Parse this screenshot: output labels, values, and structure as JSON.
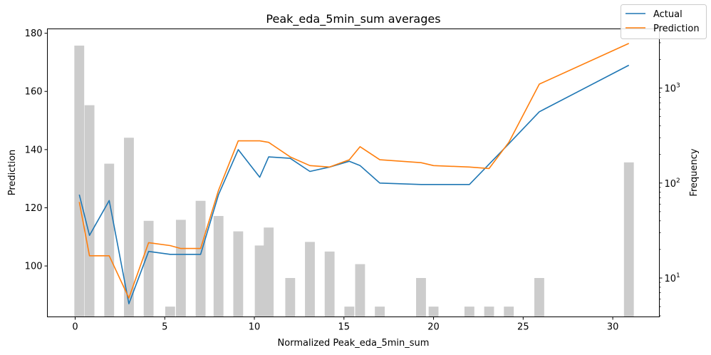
{
  "chart_data": {
    "type": "line",
    "title": "Peak_eda_5min_sum averages",
    "xlabel": "Normalized Peak_eda_5min_sum",
    "ylabel": "Prediction",
    "ylabel_right": "Frequency",
    "xlim": [
      -1.55,
      32.6
    ],
    "ylim": [
      82.5,
      181.5
    ],
    "y2_log": true,
    "y2lim": [
      3.9,
      4200
    ],
    "grid": false,
    "legend_position": "top-right",
    "x_ticks": [
      0,
      5,
      10,
      15,
      20,
      25,
      30
    ],
    "x_tick_labels": [
      "0",
      "5",
      "10",
      "15",
      "20",
      "25",
      "30"
    ],
    "y_ticks": [
      100,
      120,
      140,
      160,
      180
    ],
    "y_tick_labels": [
      "100",
      "120",
      "140",
      "160",
      "180"
    ],
    "y2_ticks": [
      10,
      100,
      1000
    ],
    "y2_tick_labels": [
      "10",
      "10",
      "10"
    ],
    "y2_tick_exponents": [
      "1",
      "2",
      "3"
    ],
    "series": [
      {
        "name": "Actual",
        "color": "#1f77b4",
        "x": [
          0.23,
          0.8,
          1.9,
          3.0,
          4.1,
          5.3,
          5.9,
          7.0,
          8.0,
          9.1,
          10.3,
          10.8,
          12.0,
          13.1,
          14.2,
          15.3,
          15.9,
          17.0,
          19.3,
          20.0,
          22.0,
          23.1,
          24.2,
          25.9,
          30.9
        ],
        "values": [
          124.5,
          110.5,
          122.5,
          87.0,
          105.0,
          104.0,
          104.0,
          104.0,
          124.5,
          140.0,
          130.5,
          137.5,
          137.0,
          132.5,
          134.0,
          136.0,
          134.5,
          128.5,
          128.0,
          128.0,
          128.0,
          135.0,
          142.0,
          153.0,
          169.0
        ]
      },
      {
        "name": "Prediction",
        "color": "#ff7f0e",
        "x": [
          0.23,
          0.8,
          1.9,
          3.0,
          4.1,
          5.3,
          5.9,
          7.0,
          8.0,
          9.1,
          10.3,
          10.8,
          12.0,
          13.1,
          14.2,
          15.3,
          15.9,
          17.0,
          19.3,
          20.0,
          22.0,
          23.1,
          24.2,
          25.9,
          30.9
        ],
        "values": [
          122.0,
          103.5,
          103.5,
          89.0,
          108.0,
          107.0,
          106.0,
          106.0,
          126.0,
          143.0,
          143.0,
          142.5,
          137.5,
          134.5,
          134.0,
          136.5,
          141.0,
          136.5,
          135.5,
          134.5,
          134.0,
          133.5,
          142.5,
          162.5,
          176.5
        ]
      }
    ],
    "histogram": {
      "name": "Frequency",
      "color": "#cccccc",
      "bar_width": 0.55,
      "x": [
        0.23,
        0.8,
        1.9,
        3.0,
        4.1,
        5.3,
        5.9,
        7.0,
        8.0,
        9.1,
        10.3,
        10.8,
        12.0,
        13.1,
        14.2,
        15.3,
        15.9,
        17.0,
        19.3,
        20.0,
        22.0,
        23.1,
        24.2,
        25.9,
        30.9
      ],
      "values": [
        2800,
        660,
        160,
        300,
        40,
        5,
        41,
        65,
        45,
        31,
        22,
        34,
        10,
        24,
        19,
        5,
        14,
        5,
        10,
        5,
        5,
        5,
        5,
        10,
        165
      ]
    }
  }
}
